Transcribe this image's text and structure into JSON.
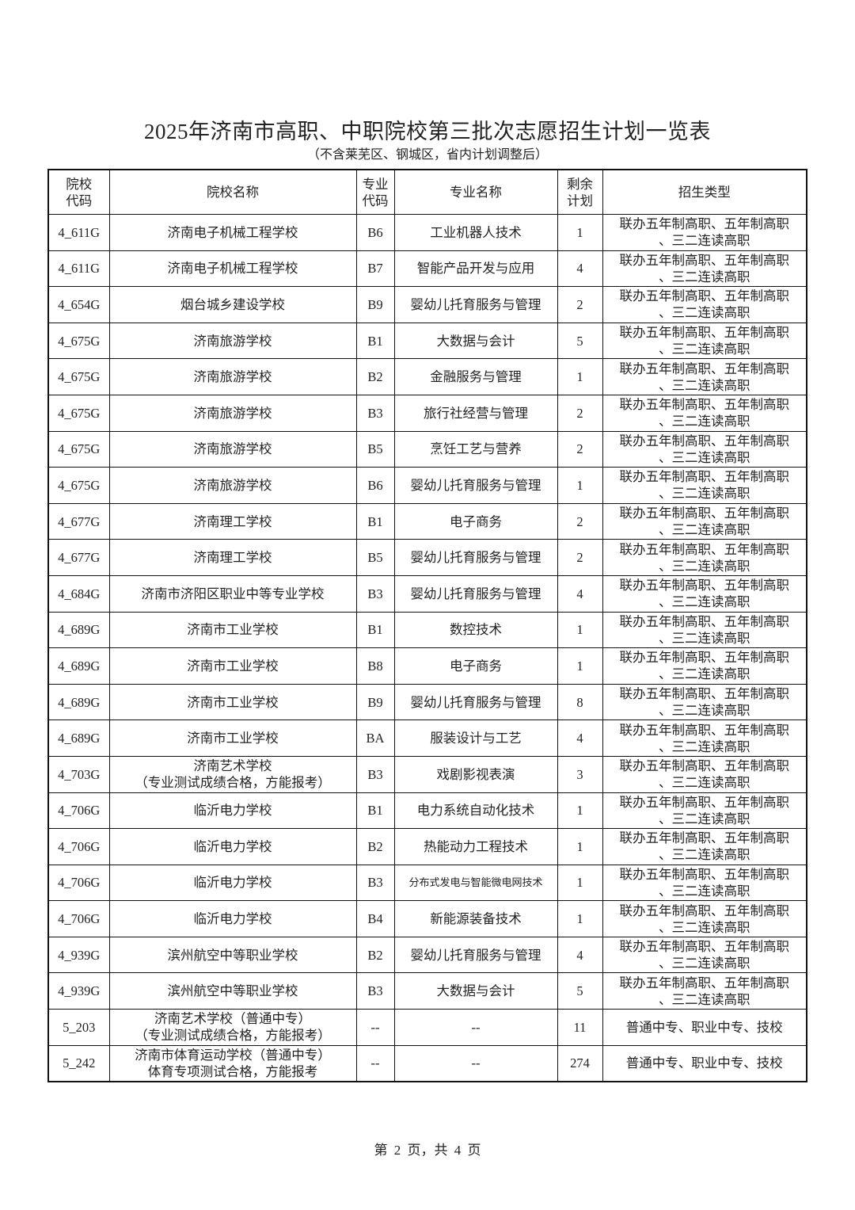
{
  "title": "2025年济南市高职、中职院校第三批次志愿招生计划一览表",
  "subtitle": "（不含莱芜区、钢城区，省内计划调整后）",
  "table": {
    "headers": [
      "院校\n代码",
      "院校名称",
      "专业\n代码",
      "专业名称",
      "剩余\n计划",
      "招生类型"
    ],
    "rows": [
      [
        "4_611G",
        "济南电子机械工程学校",
        "B6",
        "工业机器人技术",
        "1",
        "联办五年制高职、五年制高职\n、三二连读高职"
      ],
      [
        "4_611G",
        "济南电子机械工程学校",
        "B7",
        "智能产品开发与应用",
        "4",
        "联办五年制高职、五年制高职\n、三二连读高职"
      ],
      [
        "4_654G",
        "烟台城乡建设学校",
        "B9",
        "婴幼儿托育服务与管理",
        "2",
        "联办五年制高职、五年制高职\n、三二连读高职"
      ],
      [
        "4_675G",
        "济南旅游学校",
        "B1",
        "大数据与会计",
        "5",
        "联办五年制高职、五年制高职\n、三二连读高职"
      ],
      [
        "4_675G",
        "济南旅游学校",
        "B2",
        "金融服务与管理",
        "1",
        "联办五年制高职、五年制高职\n、三二连读高职"
      ],
      [
        "4_675G",
        "济南旅游学校",
        "B3",
        "旅行社经营与管理",
        "2",
        "联办五年制高职、五年制高职\n、三二连读高职"
      ],
      [
        "4_675G",
        "济南旅游学校",
        "B5",
        "烹饪工艺与营养",
        "2",
        "联办五年制高职、五年制高职\n、三二连读高职"
      ],
      [
        "4_675G",
        "济南旅游学校",
        "B6",
        "婴幼儿托育服务与管理",
        "1",
        "联办五年制高职、五年制高职\n、三二连读高职"
      ],
      [
        "4_677G",
        "济南理工学校",
        "B1",
        "电子商务",
        "2",
        "联办五年制高职、五年制高职\n、三二连读高职"
      ],
      [
        "4_677G",
        "济南理工学校",
        "B5",
        "婴幼儿托育服务与管理",
        "2",
        "联办五年制高职、五年制高职\n、三二连读高职"
      ],
      [
        "4_684G",
        "济南市济阳区职业中等专业学校",
        "B3",
        "婴幼儿托育服务与管理",
        "4",
        "联办五年制高职、五年制高职\n、三二连读高职"
      ],
      [
        "4_689G",
        "济南市工业学校",
        "B1",
        "数控技术",
        "1",
        "联办五年制高职、五年制高职\n、三二连读高职"
      ],
      [
        "4_689G",
        "济南市工业学校",
        "B8",
        "电子商务",
        "1",
        "联办五年制高职、五年制高职\n、三二连读高职"
      ],
      [
        "4_689G",
        "济南市工业学校",
        "B9",
        "婴幼儿托育服务与管理",
        "8",
        "联办五年制高职、五年制高职\n、三二连读高职"
      ],
      [
        "4_689G",
        "济南市工业学校",
        "BA",
        "服装设计与工艺",
        "4",
        "联办五年制高职、五年制高职\n、三二连读高职"
      ],
      [
        "4_703G",
        "济南艺术学校\n（专业测试成绩合格，方能报考）",
        "B3",
        "戏剧影视表演",
        "3",
        "联办五年制高职、五年制高职\n、三二连读高职"
      ],
      [
        "4_706G",
        "临沂电力学校",
        "B1",
        "电力系统自动化技术",
        "1",
        "联办五年制高职、五年制高职\n、三二连读高职"
      ],
      [
        "4_706G",
        "临沂电力学校",
        "B2",
        "热能动力工程技术",
        "1",
        "联办五年制高职、五年制高职\n、三二连读高职"
      ],
      [
        "4_706G",
        "临沂电力学校",
        "B3",
        "分布式发电与智能微电网技术",
        "1",
        "联办五年制高职、五年制高职\n、三二连读高职"
      ],
      [
        "4_706G",
        "临沂电力学校",
        "B4",
        "新能源装备技术",
        "1",
        "联办五年制高职、五年制高职\n、三二连读高职"
      ],
      [
        "4_939G",
        "滨州航空中等职业学校",
        "B2",
        "婴幼儿托育服务与管理",
        "4",
        "联办五年制高职、五年制高职\n、三二连读高职"
      ],
      [
        "4_939G",
        "滨州航空中等职业学校",
        "B3",
        "大数据与会计",
        "5",
        "联办五年制高职、五年制高职\n、三二连读高职"
      ],
      [
        "5_203",
        "济南艺术学校（普通中专）\n（专业测试成绩合格，方能报考）",
        "--",
        "--",
        "11",
        "普通中专、职业中专、技校"
      ],
      [
        "5_242",
        "济南市体育运动学校（普通中专）\n体育专项测试合格，方能报考",
        "--",
        "--",
        "274",
        "普通中专、职业中专、技校"
      ]
    ]
  },
  "footer": "第 2 页，共 4 页"
}
